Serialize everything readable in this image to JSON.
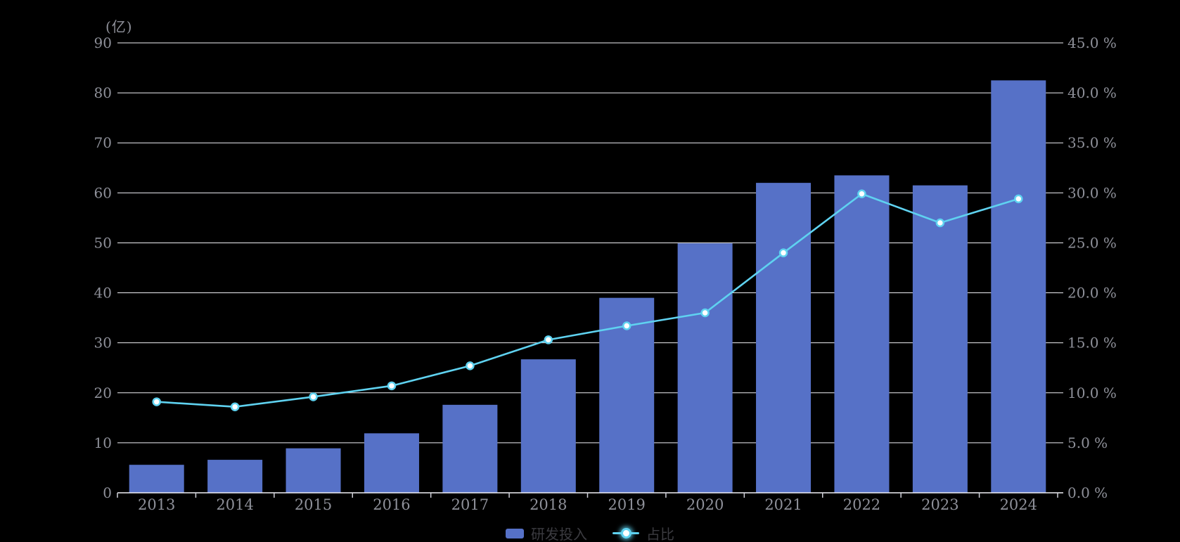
{
  "chart_data": {
    "type": "bar",
    "categories": [
      "2013",
      "2014",
      "2015",
      "2016",
      "2017",
      "2018",
      "2019",
      "2020",
      "2021",
      "2022",
      "2023",
      "2024"
    ],
    "series": [
      {
        "name": "研发投入",
        "type": "bar",
        "axis": "left",
        "color": "#5671c7",
        "values": [
          5.6,
          6.6,
          8.9,
          11.9,
          17.6,
          26.7,
          39.0,
          49.9,
          62.0,
          63.5,
          61.5,
          82.5
        ]
      },
      {
        "name": "占比",
        "type": "line",
        "axis": "right",
        "color": "#5fd2f0",
        "marker_fill": "#ffffff",
        "values": [
          9.1,
          8.6,
          9.6,
          10.7,
          12.7,
          15.3,
          16.7,
          18.0,
          24.0,
          29.9,
          27.0,
          29.4
        ]
      }
    ],
    "left_axis": {
      "unit": "(亿)",
      "min": 0,
      "max": 90,
      "tick_labels": [
        "0",
        "10",
        "20",
        "30",
        "40",
        "50",
        "60",
        "70",
        "80",
        "90"
      ]
    },
    "right_axis": {
      "min": 0,
      "max": 45,
      "tick_labels": [
        "0.0 %",
        "5.0 %",
        "10.0 %",
        "15.0 %",
        "20.0 %",
        "25.0 %",
        "30.0 %",
        "35.0 %",
        "40.0 %",
        "45.0 %"
      ]
    },
    "legend": {
      "items": [
        "研发投入",
        "占比"
      ],
      "position": "bottom-center"
    },
    "grid": true,
    "colors": {
      "background": "#000000",
      "grid_line": "#f0f0f5",
      "axis_line": "#f0f0f5",
      "axis_tick_text": "#8e9099",
      "legend_text": "#3b3b40"
    },
    "title": "",
    "xlabel": "",
    "ylabel": ""
  }
}
